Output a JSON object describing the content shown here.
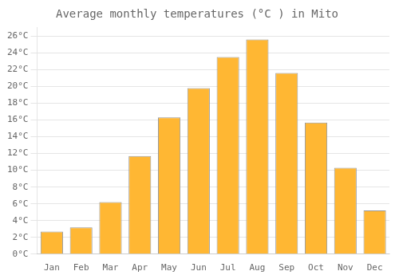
{
  "chart_data": {
    "type": "bar",
    "title": "Average monthly temperatures (°C ) in Mito",
    "categories": [
      "Jan",
      "Feb",
      "Mar",
      "Apr",
      "May",
      "Jun",
      "Jul",
      "Aug",
      "Sep",
      "Oct",
      "Nov",
      "Dec"
    ],
    "values": [
      2.7,
      3.2,
      6.2,
      11.7,
      16.3,
      19.8,
      23.5,
      25.6,
      21.6,
      15.7,
      10.3,
      5.2
    ],
    "color": "#FFB733",
    "ylim": [
      0,
      27
    ],
    "yticks": [
      {
        "value": 0,
        "label": "0°C"
      },
      {
        "value": 2,
        "label": "2°C"
      },
      {
        "value": 4,
        "label": "4°C"
      },
      {
        "value": 6,
        "label": "6°C"
      },
      {
        "value": 8,
        "label": "8°C"
      },
      {
        "value": 10,
        "label": "10°C"
      },
      {
        "value": 12,
        "label": "12°C"
      },
      {
        "value": 14,
        "label": "14°C"
      },
      {
        "value": 16,
        "label": "16°C"
      },
      {
        "value": 18,
        "label": "18°C"
      },
      {
        "value": 20,
        "label": "20°C"
      },
      {
        "value": 22,
        "label": "22°C"
      },
      {
        "value": 24,
        "label": "24°C"
      },
      {
        "value": 26,
        "label": "26°C"
      }
    ],
    "grid": true
  }
}
